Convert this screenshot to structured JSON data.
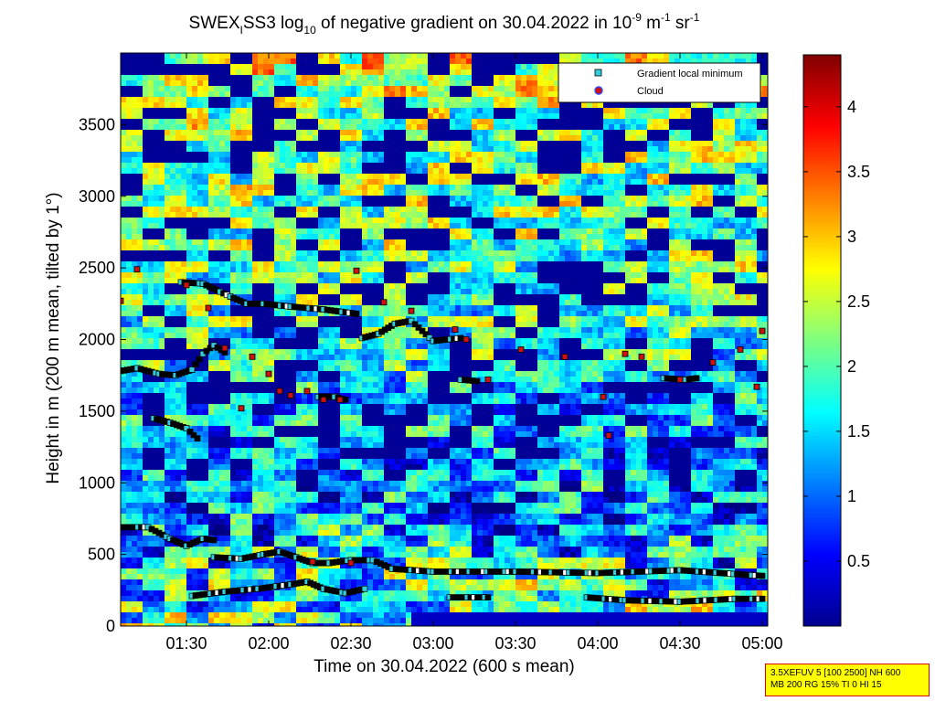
{
  "title": {
    "prefix": "SWEX",
    "prefix_sub": "I",
    "middle": "SS3 log",
    "log_base": "10",
    "after_log": " of negative gradient on 30.04.2022 in 10",
    "exp1": "-9",
    "unit_m": " m",
    "exp2": "-1",
    "unit_sr": " sr",
    "exp3": "-1"
  },
  "xlabel": "Time on 30.04.2022 (600 s mean)",
  "ylabel": "Height in m (200 m mean, tilted by 1°)",
  "params": {
    "line1": "3.5XEFUV 5 [100 2500] NH 600",
    "line2": "MB 200 RG 15% TI 0 HI 15"
  },
  "legend": {
    "gradient": "Gradient local minimum",
    "cloud": "Cloud"
  },
  "colors": {
    "gradient_marker": "#33ccdd",
    "cloud_marker": "#cc1111",
    "box_background": "#ffff00",
    "box_border": "#e00000"
  },
  "chart_data": {
    "type": "heatmap",
    "colormap": "jet",
    "x_ticks": [
      "01:30",
      "02:00",
      "02:30",
      "03:00",
      "03:30",
      "04:00",
      "04:30",
      "05:00"
    ],
    "x_tick_minutes": [
      90,
      120,
      150,
      180,
      210,
      240,
      270,
      300
    ],
    "xlim_minutes": [
      66,
      302
    ],
    "y_ticks": [
      0,
      500,
      1000,
      1500,
      2000,
      2500,
      3000,
      3500
    ],
    "ylim": [
      0,
      4000
    ],
    "colorbar_ticks": [
      0.5,
      1,
      1.5,
      2,
      2.5,
      3,
      3.5,
      4
    ],
    "colorbar_ticks_labels": [
      "0.5",
      "1",
      "1.5",
      "2",
      "2.5",
      "3",
      "3.5",
      "4"
    ],
    "clim": [
      0,
      4.4
    ],
    "value_by_height": [
      {
        "height": 0,
        "value": 1.9
      },
      {
        "height": 300,
        "value": 1.7
      },
      {
        "height": 700,
        "value": 1.2
      },
      {
        "height": 1200,
        "value": 0.8
      },
      {
        "height": 1600,
        "value": 1.1
      },
      {
        "height": 2000,
        "value": 1.5
      },
      {
        "height": 2400,
        "value": 1.6
      },
      {
        "height": 3000,
        "value": 1.8
      },
      {
        "height": 3600,
        "value": 1.9
      },
      {
        "height": 4000,
        "value": 2.2
      }
    ],
    "series": [
      {
        "name": "Gradient local minimum",
        "layers": [
          {
            "points": [
              [
                66,
                690
              ],
              [
                76,
                690
              ],
              [
                84,
                610
              ],
              [
                90,
                560
              ],
              [
                96,
                610
              ],
              [
                100,
                600
              ]
            ]
          },
          {
            "points": [
              [
                100,
                480
              ],
              [
                110,
                470
              ],
              [
                118,
                500
              ],
              [
                124,
                520
              ],
              [
                130,
                480
              ],
              [
                136,
                440
              ],
              [
                142,
                440
              ],
              [
                150,
                460
              ],
              [
                158,
                460
              ],
              [
                165,
                400
              ],
              [
                180,
                380
              ],
              [
                210,
                380
              ],
              [
                240,
                370
              ],
              [
                270,
                390
              ],
              [
                300,
                350
              ]
            ]
          },
          {
            "points": [
              [
                92,
                210
              ],
              [
                104,
                240
              ],
              [
                116,
                260
              ],
              [
                128,
                290
              ],
              [
                134,
                310
              ],
              [
                140,
                260
              ],
              [
                148,
                230
              ],
              [
                155,
                260
              ]
            ]
          },
          {
            "points": [
              [
                186,
                200
              ],
              [
                200,
                200
              ]
            ]
          },
          {
            "points": [
              [
                236,
                200
              ],
              [
                250,
                180
              ],
              [
                270,
                170
              ],
              [
                290,
                190
              ],
              [
                300,
                190
              ]
            ]
          },
          {
            "points": [
              [
                66,
                1780
              ],
              [
                72,
                1800
              ],
              [
                80,
                1760
              ],
              [
                86,
                1750
              ],
              [
                92,
                1790
              ],
              [
                96,
                1900
              ],
              [
                100,
                1960
              ],
              [
                104,
                1910
              ]
            ]
          },
          {
            "points": [
              [
                88,
                2400
              ],
              [
                96,
                2390
              ],
              [
                106,
                2300
              ],
              [
                112,
                2250
              ],
              [
                118,
                2250
              ],
              [
                128,
                2230
              ],
              [
                140,
                2210
              ],
              [
                152,
                2180
              ]
            ]
          },
          {
            "points": [
              [
                154,
                2010
              ],
              [
                160,
                2040
              ],
              [
                166,
                2110
              ],
              [
                172,
                2130
              ],
              [
                180,
                1990
              ],
              [
                190,
                2010
              ]
            ]
          },
          {
            "points": [
              [
                190,
                1720
              ],
              [
                196,
                1710
              ]
            ]
          },
          {
            "points": [
              [
                264,
                1730
              ],
              [
                272,
                1720
              ],
              [
                276,
                1730
              ]
            ]
          },
          {
            "points": [
              [
                78,
                1450
              ],
              [
                84,
                1420
              ],
              [
                90,
                1380
              ],
              [
                94,
                1310
              ]
            ]
          },
          {
            "points": [
              [
                138,
                1600
              ],
              [
                144,
                1600
              ],
              [
                148,
                1580
              ]
            ]
          }
        ]
      },
      {
        "name": "Cloud",
        "points": [
          [
            66,
            2270
          ],
          [
            72,
            2490
          ],
          [
            90,
            2380
          ],
          [
            98,
            2220
          ],
          [
            104,
            1940
          ],
          [
            110,
            1520
          ],
          [
            114,
            1880
          ],
          [
            120,
            1760
          ],
          [
            124,
            1640
          ],
          [
            128,
            1610
          ],
          [
            134,
            1640
          ],
          [
            140,
            1580
          ],
          [
            146,
            1580
          ],
          [
            152,
            2480
          ],
          [
            162,
            2260
          ],
          [
            172,
            2200
          ],
          [
            188,
            2070
          ],
          [
            192,
            2000
          ],
          [
            200,
            1720
          ],
          [
            212,
            1930
          ],
          [
            228,
            1880
          ],
          [
            242,
            1600
          ],
          [
            250,
            1900
          ],
          [
            256,
            1880
          ],
          [
            270,
            1720
          ],
          [
            282,
            1840
          ],
          [
            292,
            1930
          ],
          [
            298,
            1670
          ],
          [
            300,
            2060
          ],
          [
            244,
            1330
          ],
          [
            150,
            440
          ],
          [
            136,
            450
          ]
        ]
      }
    ]
  }
}
